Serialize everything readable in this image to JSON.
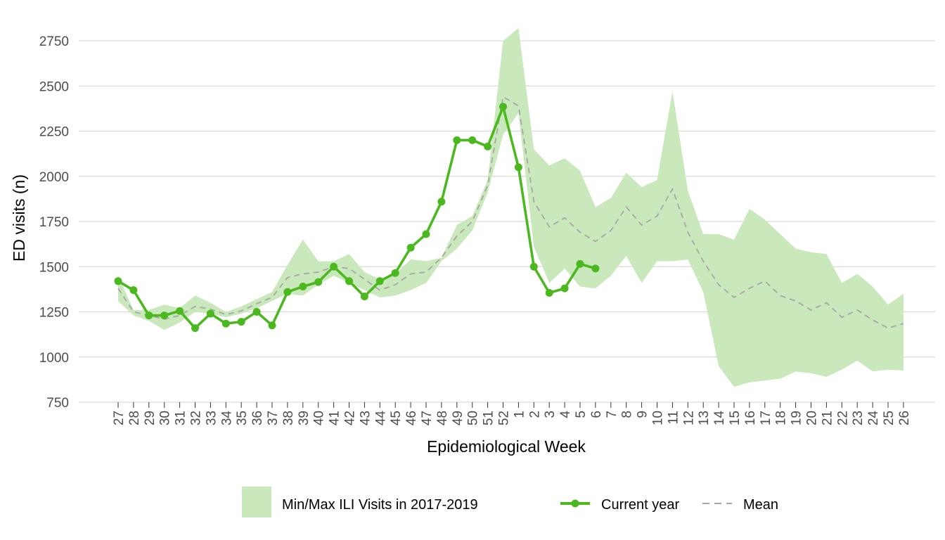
{
  "chart_data": {
    "type": "line",
    "xlabel": "Epidemiological Week",
    "ylabel": "ED visits (n)",
    "categories": [
      "27",
      "28",
      "29",
      "30",
      "31",
      "32",
      "33",
      "34",
      "35",
      "36",
      "37",
      "38",
      "39",
      "40",
      "41",
      "42",
      "43",
      "44",
      "45",
      "46",
      "47",
      "48",
      "49",
      "50",
      "51",
      "52",
      "1",
      "2",
      "3",
      "4",
      "5",
      "6",
      "7",
      "8",
      "9",
      "10",
      "11",
      "12",
      "13",
      "14",
      "15",
      "16",
      "17",
      "18",
      "19",
      "20",
      "21",
      "22",
      "23",
      "24",
      "25",
      "26"
    ],
    "ylim": [
      750,
      2820
    ],
    "yticks": [
      750,
      1000,
      1250,
      1500,
      1750,
      2000,
      2250,
      2500,
      2750
    ],
    "grid": "horizontal",
    "legend_position": "bottom",
    "series": [
      {
        "name": "Min/Max ILI Visits in 2017-2019",
        "type": "ribbon",
        "color": "#c9e8bb",
        "min": [
          1310,
          1230,
          1200,
          1150,
          1190,
          1250,
          1240,
          1220,
          1240,
          1270,
          1310,
          1350,
          1340,
          1400,
          1450,
          1410,
          1370,
          1330,
          1340,
          1370,
          1410,
          1530,
          1600,
          1700,
          1910,
          2230,
          2350,
          1610,
          1410,
          1490,
          1390,
          1380,
          1450,
          1560,
          1410,
          1530,
          1530,
          1540,
          1360,
          950,
          835,
          860,
          870,
          880,
          920,
          910,
          890,
          930,
          980,
          920,
          930,
          925
        ],
        "max": [
          1450,
          1260,
          1260,
          1290,
          1270,
          1340,
          1300,
          1250,
          1280,
          1320,
          1360,
          1510,
          1650,
          1530,
          1530,
          1570,
          1470,
          1430,
          1460,
          1540,
          1530,
          1550,
          1730,
          1780,
          1980,
          2750,
          2820,
          2150,
          2060,
          2100,
          2030,
          1830,
          1880,
          2020,
          1940,
          1980,
          2470,
          1920,
          1680,
          1680,
          1650,
          1820,
          1760,
          1680,
          1600,
          1580,
          1570,
          1410,
          1460,
          1390,
          1290,
          1350
        ]
      },
      {
        "name": "Current year",
        "type": "line-points",
        "color": "#4cb81f",
        "x": [
          "27",
          "28",
          "29",
          "30",
          "31",
          "32",
          "33",
          "34",
          "35",
          "36",
          "37",
          "38",
          "39",
          "40",
          "41",
          "42",
          "43",
          "44",
          "45",
          "46",
          "47",
          "48",
          "49",
          "50",
          "51",
          "52",
          "1",
          "2",
          "3",
          "4",
          "5",
          "6"
        ],
        "values": [
          1420,
          1370,
          1230,
          1230,
          1255,
          1160,
          1240,
          1185,
          1195,
          1250,
          1175,
          1360,
          1390,
          1415,
          1500,
          1420,
          1335,
          1420,
          1465,
          1605,
          1680,
          1860,
          2200,
          2200,
          2165,
          2385,
          2050,
          1500,
          1355,
          1380,
          1515,
          1490
        ]
      },
      {
        "name": "Mean",
        "type": "dashed-line",
        "color": "#a6a6a6",
        "values": [
          1380,
          1250,
          1230,
          1210,
          1230,
          1280,
          1265,
          1235,
          1255,
          1295,
          1330,
          1440,
          1460,
          1470,
          1500,
          1490,
          1430,
          1370,
          1400,
          1460,
          1470,
          1550,
          1670,
          1750,
          1950,
          2440,
          2390,
          1860,
          1720,
          1770,
          1690,
          1640,
          1700,
          1830,
          1730,
          1780,
          1930,
          1690,
          1530,
          1400,
          1330,
          1380,
          1420,
          1340,
          1310,
          1260,
          1300,
          1220,
          1260,
          1205,
          1160,
          1185
        ]
      }
    ]
  }
}
